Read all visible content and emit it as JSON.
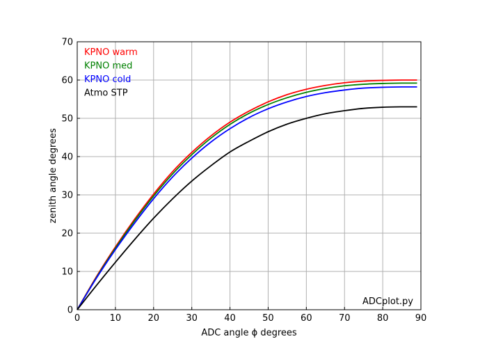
{
  "chart_data": {
    "type": "line",
    "title": "",
    "xlabel": "ADC angle ϕ degrees",
    "ylabel": "zenith angle degrees",
    "xlim": [
      0,
      90
    ],
    "ylim": [
      0,
      70
    ],
    "xticks": [
      "0",
      "10",
      "20",
      "30",
      "40",
      "50",
      "60",
      "70",
      "80",
      "90"
    ],
    "yticks": [
      "0",
      "10",
      "20",
      "30",
      "40",
      "50",
      "60",
      "70"
    ],
    "grid": true,
    "legend_position": "top-left",
    "annotation": "ADCplot.py",
    "series": [
      {
        "name": "KPNO warm",
        "color": "#ff0000",
        "x": [
          0,
          5,
          10,
          15,
          20,
          25,
          30,
          35,
          40,
          45,
          50,
          55,
          60,
          65,
          70,
          75,
          80,
          85,
          89
        ],
        "y": [
          0,
          8.6,
          16.4,
          23.6,
          30.2,
          36.1,
          41.1,
          45.4,
          49.0,
          51.9,
          54.3,
          56.2,
          57.6,
          58.6,
          59.3,
          59.7,
          59.9,
          60.0,
          60.0
        ]
      },
      {
        "name": "KPNO med",
        "color": "#008000",
        "x": [
          0,
          5,
          10,
          15,
          20,
          25,
          30,
          35,
          40,
          45,
          50,
          55,
          60,
          65,
          70,
          75,
          80,
          85,
          89
        ],
        "y": [
          0,
          8.4,
          16.1,
          23.2,
          29.7,
          35.5,
          40.5,
          44.8,
          48.4,
          51.3,
          53.6,
          55.4,
          56.8,
          57.8,
          58.5,
          58.9,
          59.1,
          59.2,
          59.2
        ]
      },
      {
        "name": "KPNO cold",
        "color": "#0000ff",
        "x": [
          0,
          5,
          10,
          15,
          20,
          25,
          30,
          35,
          40,
          45,
          50,
          55,
          60,
          65,
          70,
          75,
          80,
          85,
          89
        ],
        "y": [
          0,
          8.2,
          15.7,
          22.6,
          29.0,
          34.7,
          39.6,
          43.8,
          47.3,
          50.2,
          52.5,
          54.3,
          55.7,
          56.7,
          57.4,
          57.9,
          58.1,
          58.2,
          58.2
        ]
      },
      {
        "name": "Atmo STP",
        "color": "#000000",
        "x": [
          0,
          5,
          10,
          15,
          20,
          25,
          30,
          35,
          40,
          45,
          50,
          55,
          60,
          65,
          70,
          75,
          80,
          85,
          89
        ],
        "y": [
          0,
          6.3,
          12.4,
          18.3,
          23.9,
          29.0,
          33.6,
          37.6,
          41.2,
          44.0,
          46.5,
          48.5,
          50.0,
          51.2,
          52.0,
          52.6,
          52.9,
          53.0,
          53.0
        ]
      }
    ]
  }
}
